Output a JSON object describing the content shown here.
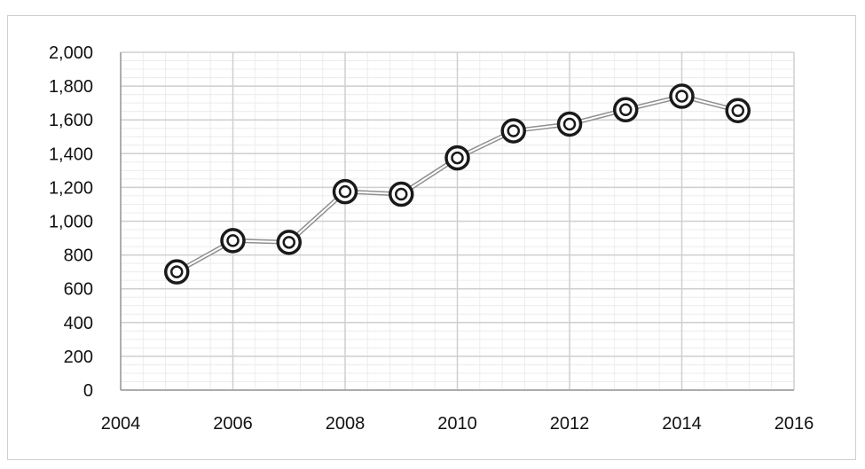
{
  "chart_data": {
    "type": "line",
    "title": "",
    "xlabel": "",
    "ylabel": "",
    "xlim": [
      2004,
      2016
    ],
    "ylim": [
      0,
      2000
    ],
    "x_ticks": [
      2004,
      2006,
      2008,
      2010,
      2012,
      2014,
      2016
    ],
    "x_tick_labels": [
      "2004",
      "2006",
      "2008",
      "2010",
      "2012",
      "2014",
      "2016"
    ],
    "y_ticks": [
      0,
      200,
      400,
      600,
      800,
      1000,
      1200,
      1400,
      1600,
      1800,
      2000
    ],
    "y_tick_labels": [
      "0",
      "200",
      "400",
      "600",
      "800",
      "1,000",
      "1,200",
      "1,400",
      "1,600",
      "1,800",
      "2,000"
    ],
    "grid": true,
    "legend": "none",
    "series": [
      {
        "x": [
          2005,
          2006,
          2007,
          2008,
          2009,
          2010,
          2011,
          2012,
          2013,
          2014,
          2015
        ],
        "values": [
          700,
          885,
          875,
          1175,
          1160,
          1375,
          1535,
          1575,
          1660,
          1740,
          1655
        ],
        "color": "#1a1a1a",
        "line_color": "#a8a8a8",
        "marker": "double-circle"
      }
    ]
  }
}
